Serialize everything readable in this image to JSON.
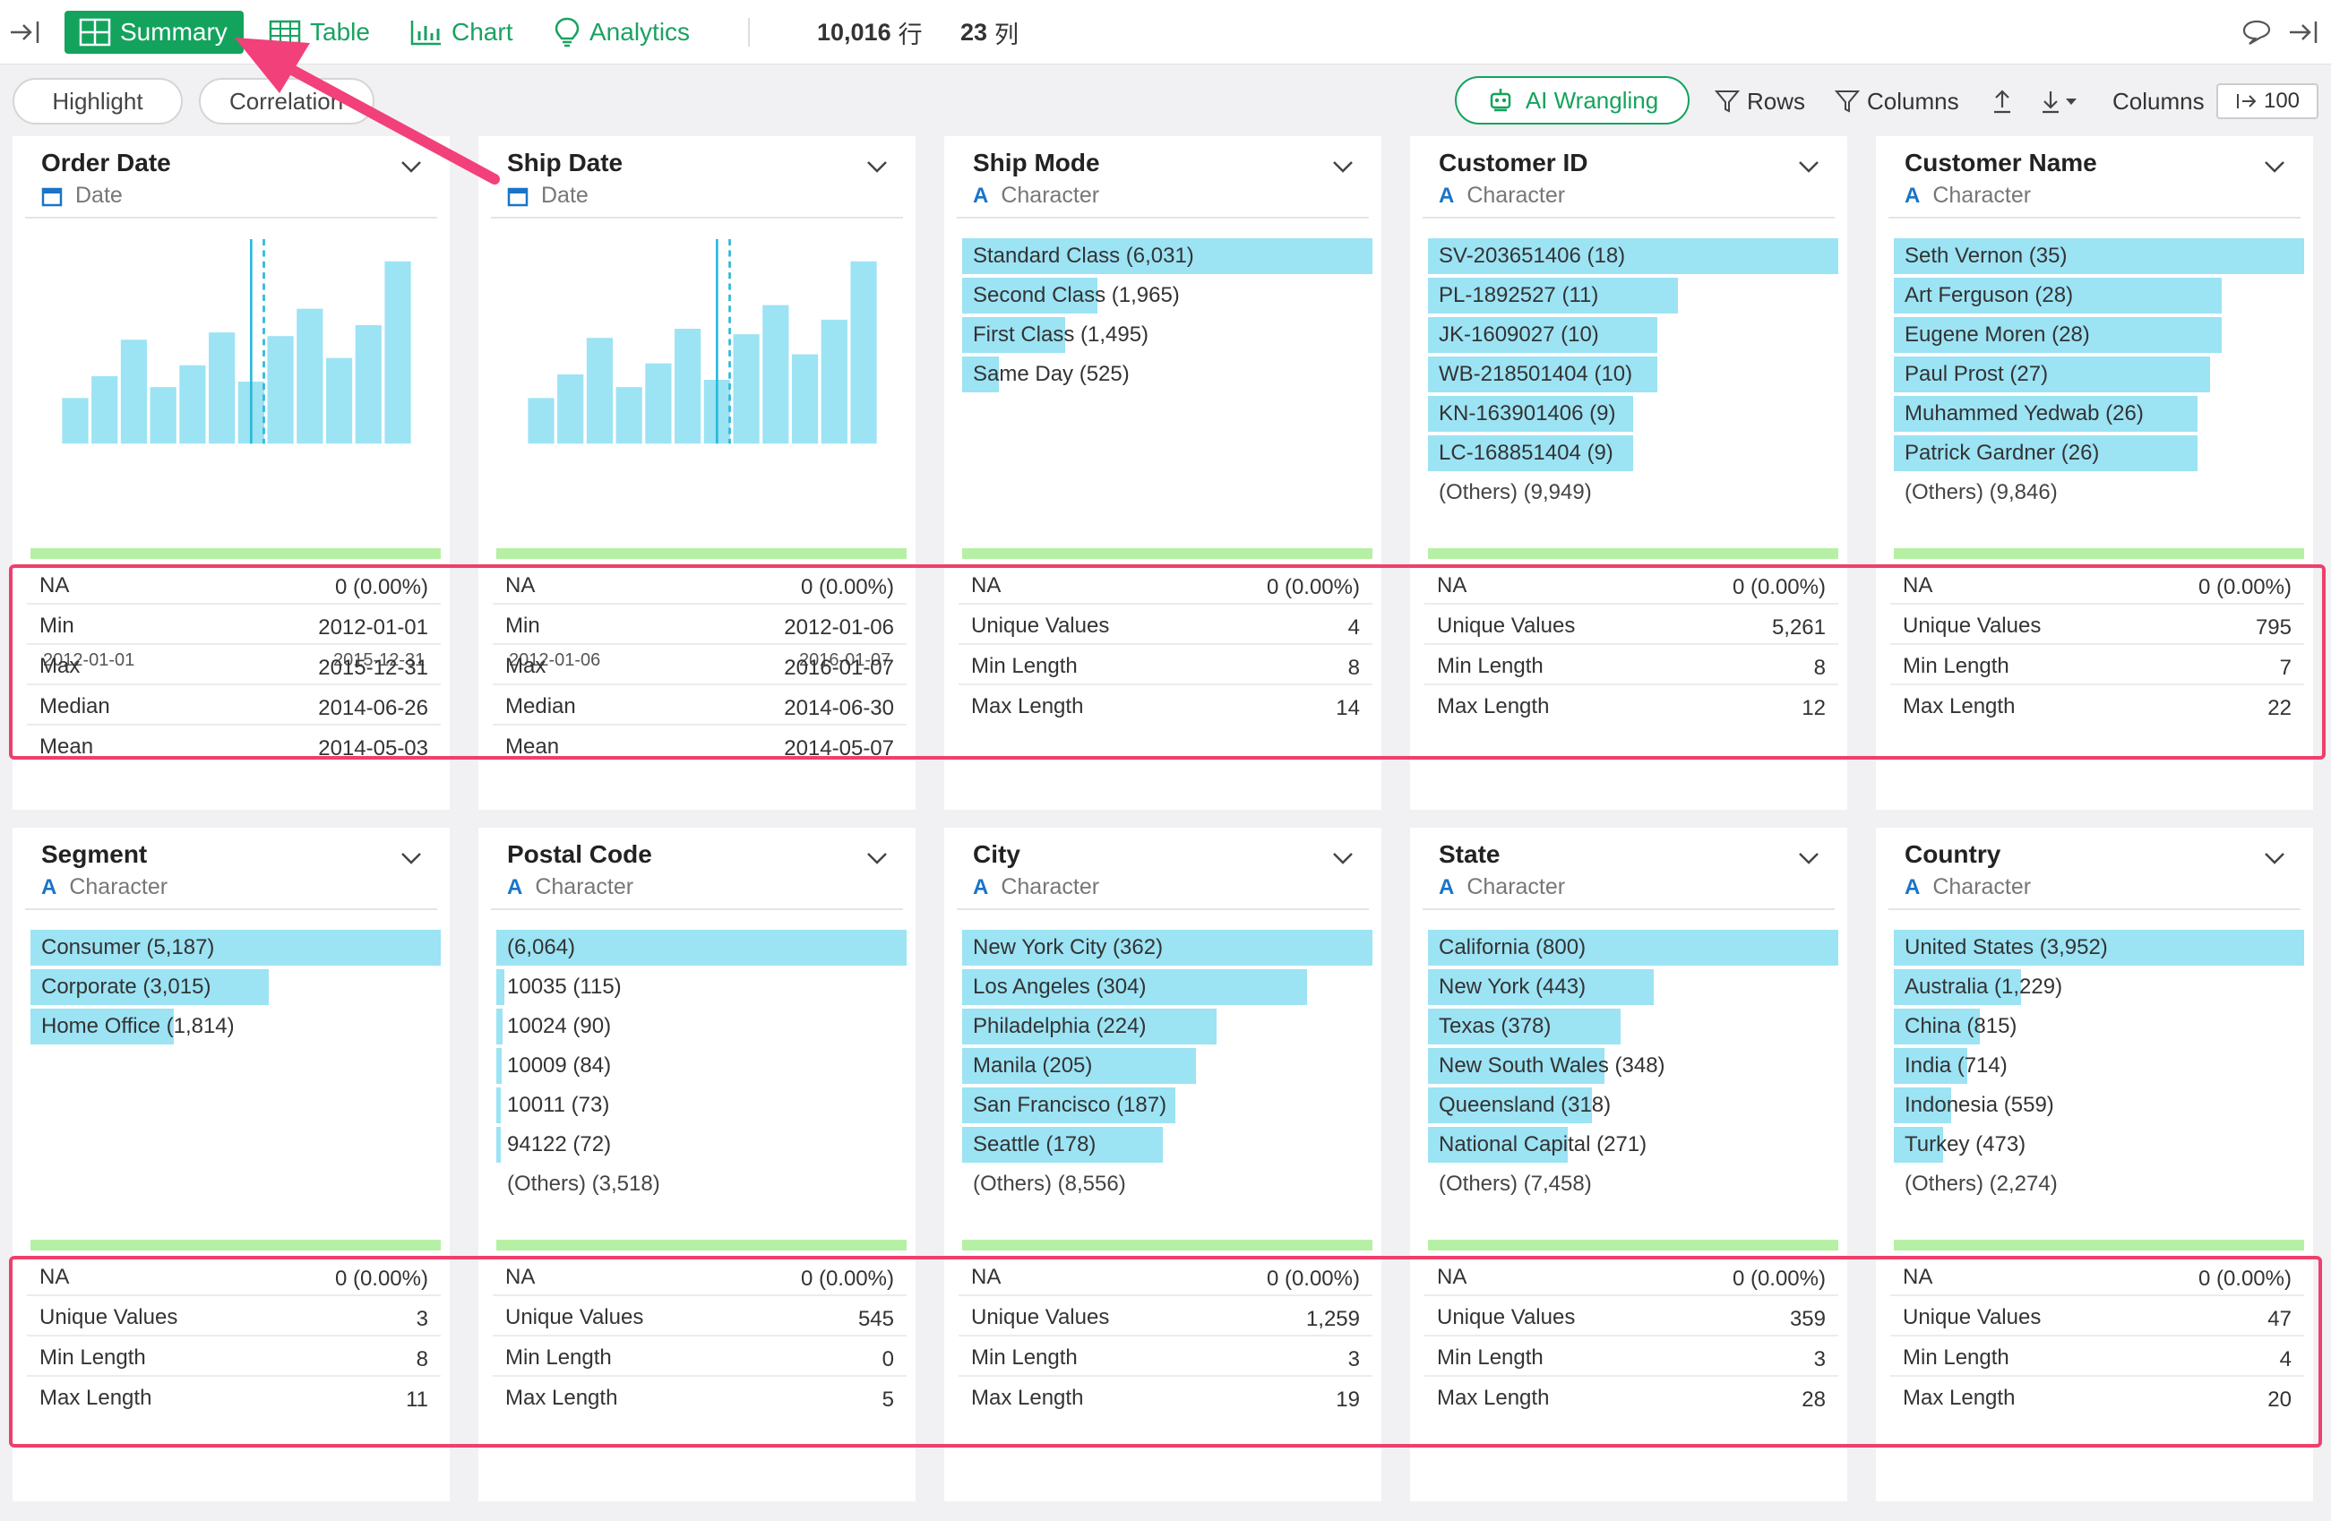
{
  "toolbar": {
    "tabs": [
      {
        "label": "Summary",
        "icon": "grid-icon"
      },
      {
        "label": "Table",
        "icon": "table-icon"
      },
      {
        "label": "Chart",
        "icon": "bar-chart-icon"
      },
      {
        "label": "Analytics",
        "icon": "lightbulb-icon"
      }
    ],
    "rows_count": "10,016",
    "rows_unit": "行",
    "cols_count": "23",
    "cols_unit": "列"
  },
  "subbar": {
    "highlight_label": "Highlight",
    "correlation_label": "Correlation",
    "ai_label": "AI Wrangling",
    "rows_label": "Rows",
    "columns_label": "Columns",
    "columns_setting_label": "Columns",
    "columns_value": "100"
  },
  "colors": {
    "accent": "#13a35d",
    "bar": "#9ce3f4",
    "na_strip": "#b6f0a5",
    "highlight": "#ef3f6c"
  },
  "cards": [
    {
      "title": "Order Date",
      "type": "Date",
      "kind": "date",
      "hist": [
        0.25,
        0.37,
        0.57,
        0.31,
        0.43,
        0.61,
        0.34,
        0.59,
        0.74,
        0.47,
        0.65,
        1.0
      ],
      "axis_min": "2012-01-01",
      "axis_max": "2015-12-31",
      "stats": [
        [
          "NA",
          "0 (0.00%)"
        ],
        [
          "Min",
          "2012-01-01"
        ],
        [
          "Max",
          "2015-12-31"
        ],
        [
          "Median",
          "2014-06-26"
        ],
        [
          "Mean",
          "2014-05-03"
        ]
      ]
    },
    {
      "title": "Ship Date",
      "type": "Date",
      "kind": "date",
      "hist": [
        0.25,
        0.38,
        0.58,
        0.31,
        0.44,
        0.63,
        0.35,
        0.6,
        0.76,
        0.49,
        0.68,
        1.0
      ],
      "axis_min": "2012-01-06",
      "axis_max": "2016-01-07",
      "stats": [
        [
          "NA",
          "0 (0.00%)"
        ],
        [
          "Min",
          "2012-01-06"
        ],
        [
          "Max",
          "2016-01-07"
        ],
        [
          "Median",
          "2014-06-30"
        ],
        [
          "Mean",
          "2014-05-07"
        ]
      ]
    },
    {
      "title": "Ship Mode",
      "type": "Character",
      "kind": "char",
      "bars": [
        [
          "Standard Class (6,031)",
          1.0
        ],
        [
          "Second Class (1,965)",
          0.33
        ],
        [
          "First Class (1,495)",
          0.25
        ],
        [
          "Same Day (525)",
          0.09
        ]
      ],
      "others": "",
      "stats": [
        [
          "NA",
          "0 (0.00%)"
        ],
        [
          "Unique Values",
          "4"
        ],
        [
          "Min Length",
          "8"
        ],
        [
          "Max Length",
          "14"
        ]
      ]
    },
    {
      "title": "Customer ID",
      "type": "Character",
      "kind": "char",
      "bars": [
        [
          "SV-203651406 (18)",
          1.0
        ],
        [
          "PL-1892527 (11)",
          0.61
        ],
        [
          "JK-1609027 (10)",
          0.56
        ],
        [
          "WB-218501404 (10)",
          0.56
        ],
        [
          "KN-163901406 (9)",
          0.5
        ],
        [
          "LC-168851404 (9)",
          0.5
        ]
      ],
      "others": "(Others) (9,949)",
      "stats": [
        [
          "NA",
          "0 (0.00%)"
        ],
        [
          "Unique Values",
          "5,261"
        ],
        [
          "Min Length",
          "8"
        ],
        [
          "Max Length",
          "12"
        ]
      ]
    },
    {
      "title": "Customer Name",
      "type": "Character",
      "kind": "char",
      "bars": [
        [
          "Seth Vernon (35)",
          1.0
        ],
        [
          "Art Ferguson (28)",
          0.8
        ],
        [
          "Eugene Moren (28)",
          0.8
        ],
        [
          "Paul Prost (27)",
          0.77
        ],
        [
          "Muhammed Yedwab (26)",
          0.74
        ],
        [
          "Patrick Gardner (26)",
          0.74
        ]
      ],
      "others": "(Others) (9,846)",
      "stats": [
        [
          "NA",
          "0 (0.00%)"
        ],
        [
          "Unique Values",
          "795"
        ],
        [
          "Min Length",
          "7"
        ],
        [
          "Max Length",
          "22"
        ]
      ]
    },
    {
      "title": "Segment",
      "type": "Character",
      "kind": "char",
      "bars": [
        [
          "Consumer (5,187)",
          1.0
        ],
        [
          "Corporate (3,015)",
          0.58
        ],
        [
          "Home Office (1,814)",
          0.35
        ]
      ],
      "others": "",
      "stats": [
        [
          "NA",
          "0 (0.00%)"
        ],
        [
          "Unique Values",
          "3"
        ],
        [
          "Min Length",
          "8"
        ],
        [
          "Max Length",
          "11"
        ]
      ]
    },
    {
      "title": "Postal Code",
      "type": "Character",
      "kind": "char",
      "bars": [
        [
          "(6,064)",
          1.0
        ],
        [
          "10035 (115)",
          0.02
        ],
        [
          "10024 (90)",
          0.015
        ],
        [
          "10009 (84)",
          0.014
        ],
        [
          "10011 (73)",
          0.012
        ],
        [
          "94122 (72)",
          0.012
        ]
      ],
      "others": "(Others) (3,518)",
      "stats": [
        [
          "NA",
          "0 (0.00%)"
        ],
        [
          "Unique Values",
          "545"
        ],
        [
          "Min Length",
          "0"
        ],
        [
          "Max Length",
          "5"
        ]
      ]
    },
    {
      "title": "City",
      "type": "Character",
      "kind": "char",
      "bars": [
        [
          "New York City (362)",
          1.0
        ],
        [
          "Los Angeles (304)",
          0.84
        ],
        [
          "Philadelphia (224)",
          0.62
        ],
        [
          "Manila (205)",
          0.57
        ],
        [
          "San Francisco (187)",
          0.52
        ],
        [
          "Seattle (178)",
          0.49
        ]
      ],
      "others": "(Others) (8,556)",
      "stats": [
        [
          "NA",
          "0 (0.00%)"
        ],
        [
          "Unique Values",
          "1,259"
        ],
        [
          "Min Length",
          "3"
        ],
        [
          "Max Length",
          "19"
        ]
      ]
    },
    {
      "title": "State",
      "type": "Character",
      "kind": "char",
      "bars": [
        [
          "California (800)",
          1.0
        ],
        [
          "New York (443)",
          0.55
        ],
        [
          "Texas (378)",
          0.47
        ],
        [
          "New South Wales (348)",
          0.43
        ],
        [
          "Queensland (318)",
          0.4
        ],
        [
          "National Capital (271)",
          0.34
        ]
      ],
      "others": "(Others) (7,458)",
      "stats": [
        [
          "NA",
          "0 (0.00%)"
        ],
        [
          "Unique Values",
          "359"
        ],
        [
          "Min Length",
          "3"
        ],
        [
          "Max Length",
          "28"
        ]
      ]
    },
    {
      "title": "Country",
      "type": "Character",
      "kind": "char",
      "bars": [
        [
          "United States (3,952)",
          1.0
        ],
        [
          "Australia (1,229)",
          0.31
        ],
        [
          "China (815)",
          0.21
        ],
        [
          "India (714)",
          0.18
        ],
        [
          "Indonesia (559)",
          0.14
        ],
        [
          "Turkey (473)",
          0.12
        ]
      ],
      "others": "(Others) (2,274)",
      "stats": [
        [
          "NA",
          "0 (0.00%)"
        ],
        [
          "Unique Values",
          "47"
        ],
        [
          "Min Length",
          "4"
        ],
        [
          "Max Length",
          "20"
        ]
      ]
    }
  ]
}
